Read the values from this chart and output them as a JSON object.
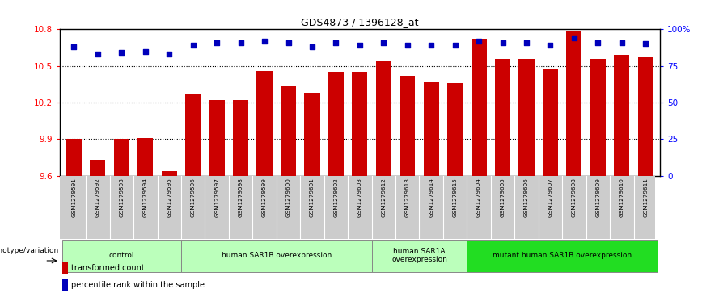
{
  "title": "GDS4873 / 1396128_at",
  "samples": [
    "GSM1279591",
    "GSM1279592",
    "GSM1279593",
    "GSM1279594",
    "GSM1279595",
    "GSM1279596",
    "GSM1279597",
    "GSM1279598",
    "GSM1279599",
    "GSM1279600",
    "GSM1279601",
    "GSM1279602",
    "GSM1279603",
    "GSM1279612",
    "GSM1279613",
    "GSM1279614",
    "GSM1279615",
    "GSM1279604",
    "GSM1279605",
    "GSM1279606",
    "GSM1279607",
    "GSM1279608",
    "GSM1279609",
    "GSM1279610",
    "GSM1279611"
  ],
  "bar_values": [
    9.9,
    9.73,
    9.9,
    9.91,
    9.64,
    10.27,
    10.22,
    10.22,
    10.46,
    10.33,
    10.28,
    10.45,
    10.45,
    10.54,
    10.42,
    10.37,
    10.36,
    10.72,
    10.56,
    10.56,
    10.47,
    10.79,
    10.56,
    10.59,
    10.57
  ],
  "percentile_values": [
    88,
    83,
    84,
    85,
    83,
    89,
    91,
    91,
    92,
    91,
    88,
    91,
    89,
    91,
    89,
    89,
    89,
    92,
    91,
    91,
    89,
    94,
    91,
    91,
    90
  ],
  "ylim_left": [
    9.6,
    10.8
  ],
  "ylim_right": [
    0,
    100
  ],
  "yticks_left": [
    9.6,
    9.9,
    10.2,
    10.5,
    10.8
  ],
  "yticks_right": [
    0,
    25,
    50,
    75,
    100
  ],
  "ytick_labels_right": [
    "0",
    "25",
    "50",
    "75",
    "100%"
  ],
  "bar_color": "#cc0000",
  "dot_color": "#0000bb",
  "groups": [
    {
      "label": "control",
      "start": 0,
      "end": 4,
      "color": "#bbffbb"
    },
    {
      "label": "human SAR1B overexpression",
      "start": 5,
      "end": 12,
      "color": "#bbffbb"
    },
    {
      "label": "human SAR1A\noverexpression",
      "start": 13,
      "end": 16,
      "color": "#bbffbb"
    },
    {
      "label": "mutant human SAR1B overexpression",
      "start": 17,
      "end": 24,
      "color": "#22dd22"
    }
  ],
  "xlabel_group": "genotype/variation",
  "legend_bar_label": "transformed count",
  "legend_dot_label": "percentile rank within the sample",
  "tick_area_color": "#cccccc"
}
